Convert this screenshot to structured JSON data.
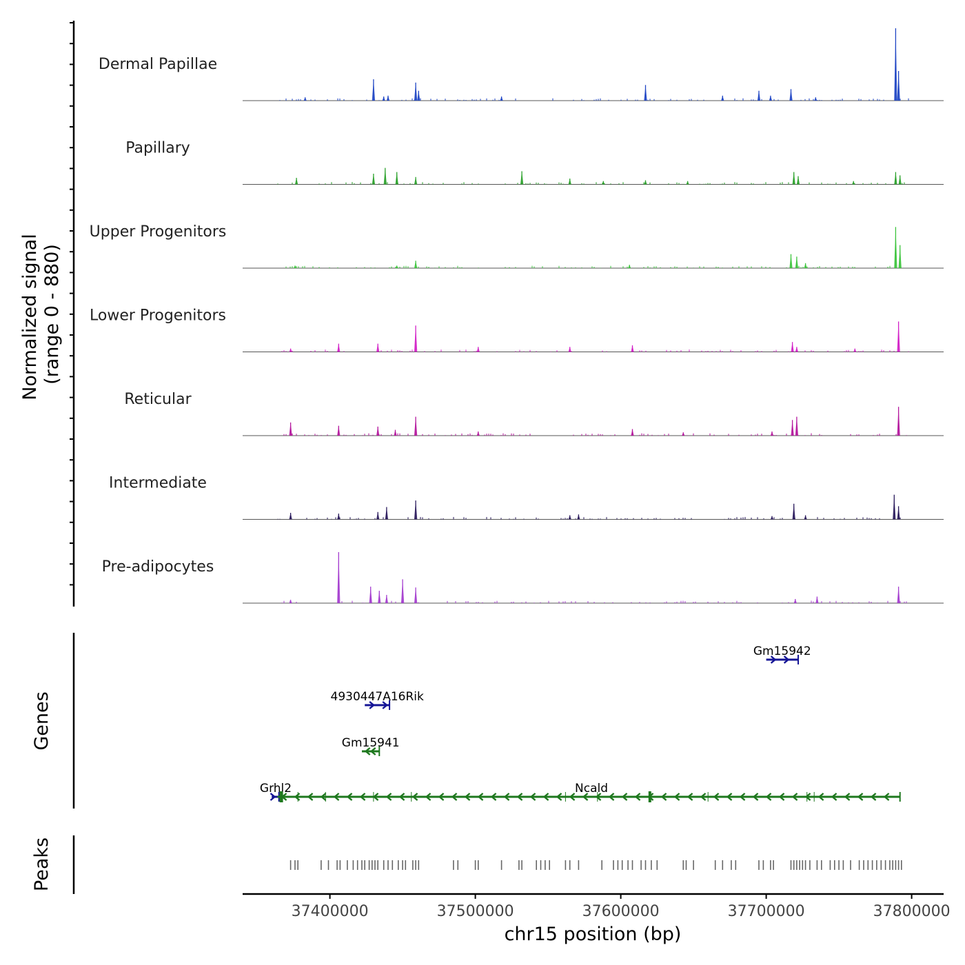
{
  "chart_data": {
    "type": "coverage-track",
    "xlabel": "chr15 position (bp)",
    "xlim": [
      37340000,
      37822000
    ],
    "x_ticks": [
      37400000,
      37500000,
      37600000,
      37700000,
      37800000
    ],
    "x_tick_labels": [
      "37400000",
      "37500000",
      "37600000",
      "37700000",
      "37800000"
    ],
    "coverage": {
      "ylabel_line1": "Normalized signal",
      "ylabel_line2": "(range 0 - 880)",
      "y_range": [
        0,
        880
      ],
      "tracks": [
        {
          "name": "Dermal Papillae",
          "color": "#1f45c4",
          "peaks": [
            [
              37430000,
              260
            ],
            [
              37459000,
              220
            ],
            [
              37461000,
              120
            ],
            [
              37437000,
              50
            ],
            [
              37440000,
              60
            ],
            [
              37518000,
              50
            ],
            [
              37617000,
              190
            ],
            [
              37695000,
              120
            ],
            [
              37703000,
              60
            ],
            [
              37717000,
              140
            ],
            [
              37734000,
              40
            ],
            [
              37789000,
              880
            ],
            [
              37791000,
              360
            ],
            [
              37670000,
              60
            ],
            [
              37383000,
              40
            ]
          ]
        },
        {
          "name": "Papillary",
          "color": "#2aa12a",
          "peaks": [
            [
              37377000,
              80
            ],
            [
              37430000,
              130
            ],
            [
              37438000,
              200
            ],
            [
              37446000,
              150
            ],
            [
              37459000,
              90
            ],
            [
              37532000,
              160
            ],
            [
              37565000,
              70
            ],
            [
              37588000,
              40
            ],
            [
              37617000,
              50
            ],
            [
              37646000,
              40
            ],
            [
              37719000,
              150
            ],
            [
              37722000,
              100
            ],
            [
              37789000,
              150
            ],
            [
              37792000,
              110
            ],
            [
              37760000,
              40
            ]
          ]
        },
        {
          "name": "Upper Progenitors",
          "color": "#3cc43c",
          "peaks": [
            [
              37459000,
              90
            ],
            [
              37717000,
              170
            ],
            [
              37721000,
              140
            ],
            [
              37727000,
              60
            ],
            [
              37789000,
              500
            ],
            [
              37792000,
              280
            ],
            [
              37606000,
              40
            ],
            [
              37376000,
              30
            ],
            [
              37446000,
              30
            ]
          ]
        },
        {
          "name": "Lower Progenitors",
          "color": "#d21fc7",
          "peaks": [
            [
              37406000,
              100
            ],
            [
              37433000,
              100
            ],
            [
              37459000,
              320
            ],
            [
              37502000,
              60
            ],
            [
              37565000,
              60
            ],
            [
              37608000,
              80
            ],
            [
              37718000,
              120
            ],
            [
              37721000,
              60
            ],
            [
              37791000,
              370
            ],
            [
              37373000,
              40
            ],
            [
              37761000,
              40
            ]
          ]
        },
        {
          "name": "Reticular",
          "color": "#b4169d",
          "peaks": [
            [
              37373000,
              160
            ],
            [
              37406000,
              120
            ],
            [
              37433000,
              110
            ],
            [
              37459000,
              230
            ],
            [
              37445000,
              70
            ],
            [
              37502000,
              50
            ],
            [
              37608000,
              80
            ],
            [
              37718000,
              190
            ],
            [
              37721000,
              230
            ],
            [
              37704000,
              50
            ],
            [
              37791000,
              350
            ],
            [
              37643000,
              40
            ]
          ]
        },
        {
          "name": "Intermediate",
          "color": "#2a1a5c",
          "peaks": [
            [
              37373000,
              80
            ],
            [
              37406000,
              70
            ],
            [
              37433000,
              90
            ],
            [
              37439000,
              150
            ],
            [
              37459000,
              230
            ],
            [
              37565000,
              50
            ],
            [
              37571000,
              60
            ],
            [
              37719000,
              190
            ],
            [
              37727000,
              50
            ],
            [
              37788000,
              300
            ],
            [
              37791000,
              160
            ],
            [
              37704000,
              40
            ]
          ]
        },
        {
          "name": "Pre-adipocytes",
          "color": "#a43ccf",
          "peaks": [
            [
              37406000,
              620
            ],
            [
              37428000,
              200
            ],
            [
              37434000,
              150
            ],
            [
              37450000,
              290
            ],
            [
              37459000,
              190
            ],
            [
              37439000,
              100
            ],
            [
              37373000,
              40
            ],
            [
              37720000,
              50
            ],
            [
              37735000,
              80
            ],
            [
              37791000,
              200
            ]
          ]
        }
      ]
    },
    "genes": {
      "label": "Genes",
      "items": [
        {
          "name": "Gm15942",
          "start": 37700000,
          "end": 37722000,
          "strand": "+",
          "color": "#141496",
          "row": 1
        },
        {
          "name": "4930447A16Rik",
          "start": 37424000,
          "end": 37441000,
          "strand": "+",
          "color": "#141496",
          "row": 2
        },
        {
          "name": "Gm15941",
          "start": 37422000,
          "end": 37434000,
          "strand": "-",
          "color": "#1e781e",
          "row": 3
        },
        {
          "name": "Grhl2",
          "start": 37360000,
          "end": 37365000,
          "strand": "+",
          "color": "#141496",
          "row": 4
        },
        {
          "name": "Ncald",
          "start": 37364000,
          "end": 37792000,
          "strand": "-",
          "color": "#1e781e",
          "row": 4
        }
      ]
    },
    "peaks": {
      "label": "Peaks",
      "positions": [
        37373000,
        37376000,
        37378000,
        37394000,
        37399000,
        37405000,
        37407000,
        37412000,
        37416000,
        37419000,
        37422000,
        37424000,
        37427000,
        37429000,
        37431000,
        37433000,
        37437000,
        37440000,
        37443000,
        37447000,
        37450000,
        37452000,
        37457000,
        37459000,
        37461000,
        37485000,
        37488000,
        37500000,
        37502000,
        37518000,
        37530000,
        37532000,
        37542000,
        37545000,
        37548000,
        37551000,
        37562000,
        37565000,
        37571000,
        37587000,
        37595000,
        37598000,
        37601000,
        37605000,
        37608000,
        37614000,
        37617000,
        37621000,
        37625000,
        37643000,
        37645000,
        37650000,
        37665000,
        37670000,
        37676000,
        37679000,
        37695000,
        37698000,
        37703000,
        37705000,
        37717000,
        37719000,
        37721000,
        37723000,
        37725000,
        37727000,
        37730000,
        37735000,
        37738000,
        37744000,
        37747000,
        37750000,
        37753000,
        37758000,
        37764000,
        37767000,
        37770000,
        37773000,
        37776000,
        37779000,
        37782000,
        37785000,
        37787000,
        37789000,
        37791000,
        37793000
      ]
    }
  }
}
